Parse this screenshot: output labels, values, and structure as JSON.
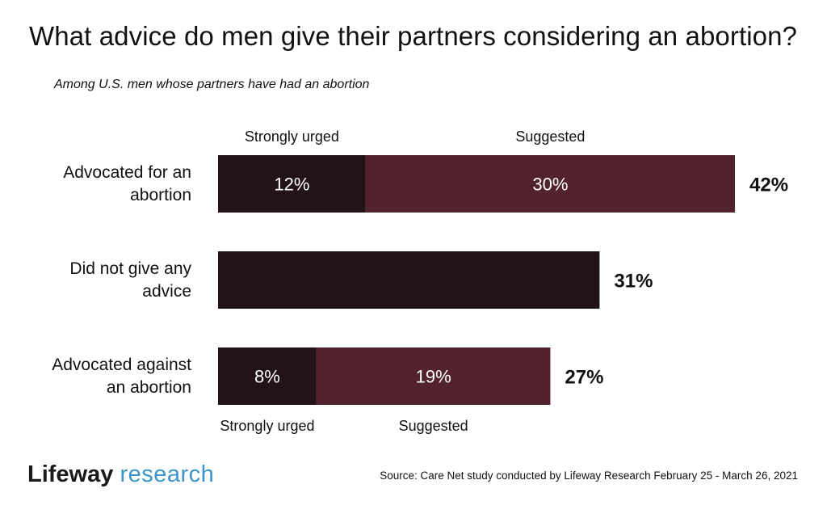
{
  "title": "What advice do men give their partners considering an abortion?",
  "subtitle": "Among U.S. men whose partners have had an abortion",
  "chart_data": {
    "type": "bar",
    "orientation": "horizontal",
    "stacked": true,
    "categories": [
      "Advocated for an abortion",
      "Did not give any advice",
      "Advocated against an abortion"
    ],
    "category_lines": [
      [
        "Advocated for an",
        "abortion"
      ],
      [
        "Did not give any",
        "advice"
      ],
      [
        "Advocated against",
        "an abortion"
      ]
    ],
    "series": [
      {
        "name": "Strongly urged",
        "values": [
          12,
          31,
          8
        ],
        "color": "#221316"
      },
      {
        "name": "Suggested",
        "values": [
          30,
          0,
          19
        ],
        "color": "#52232e"
      }
    ],
    "segment_labels": [
      [
        "12%",
        "30%"
      ],
      [
        "",
        ""
      ],
      [
        "8%",
        "19%"
      ]
    ],
    "totals": [
      42,
      31,
      27
    ],
    "total_labels": [
      "42%",
      "31%",
      "27%"
    ],
    "top_legend": [
      "Strongly urged",
      "Suggested"
    ],
    "bottom_legend": [
      "Strongly urged",
      "Suggested"
    ],
    "xlim": [
      0,
      42
    ],
    "grid": false
  },
  "footer": {
    "brand": "Lifeway",
    "unit": "research",
    "source": "Source: Care Net study conducted by Lifeway Research February 25 - March 26, 2021"
  },
  "colors": {
    "strongly_urged": "#221316",
    "suggested": "#52232e",
    "brand_accent": "#3a96c8"
  }
}
